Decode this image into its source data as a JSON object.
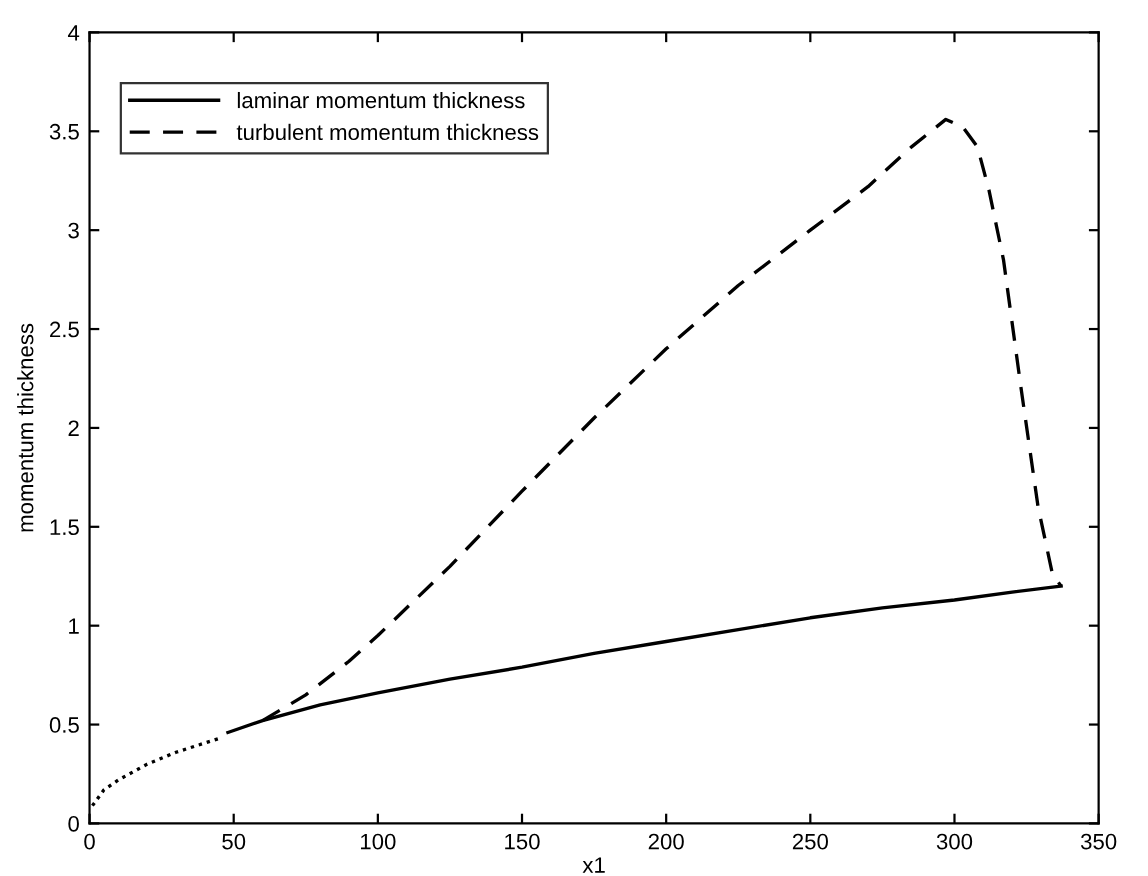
{
  "chart_data": {
    "type": "line",
    "xlabel": "x1",
    "ylabel": "momentum thickness",
    "xlim": [
      0,
      350
    ],
    "xticks": [
      0,
      50,
      100,
      150,
      200,
      250,
      300,
      350
    ],
    "ylim": [
      0,
      4
    ],
    "yticks": [
      0,
      0.5,
      1,
      1.5,
      2,
      2.5,
      3,
      3.5,
      4
    ],
    "grid": false,
    "legend": "top left",
    "series": [
      {
        "name": "laminar momentum thickness",
        "color": "#000000",
        "line_style": "solid",
        "x": [
          48,
          60,
          80,
          100,
          125,
          150,
          175,
          200,
          225,
          250,
          275,
          300,
          320,
          337
        ],
        "values": [
          0.46,
          0.52,
          0.6,
          0.66,
          0.73,
          0.79,
          0.86,
          0.92,
          0.98,
          1.04,
          1.09,
          1.13,
          1.17,
          1.2
        ]
      },
      {
        "name": "turbulent momentum thickness",
        "color": "#000000",
        "line_style": "dashed",
        "x": [
          60,
          75,
          90,
          100,
          125,
          150,
          175,
          200,
          225,
          250,
          270,
          285,
          297,
          303,
          308,
          312,
          317,
          323,
          329,
          334,
          337
        ],
        "values": [
          0.52,
          0.65,
          0.82,
          0.95,
          1.3,
          1.68,
          2.05,
          2.4,
          2.72,
          3.0,
          3.22,
          3.42,
          3.56,
          3.52,
          3.42,
          3.2,
          2.85,
          2.21,
          1.6,
          1.26,
          1.2
        ]
      },
      {
        "color": "#000000",
        "line_style": "dotted",
        "x": [
          1,
          5,
          10,
          20,
          30,
          45
        ],
        "values": [
          0.09,
          0.17,
          0.22,
          0.3,
          0.36,
          0.43
        ]
      }
    ]
  }
}
